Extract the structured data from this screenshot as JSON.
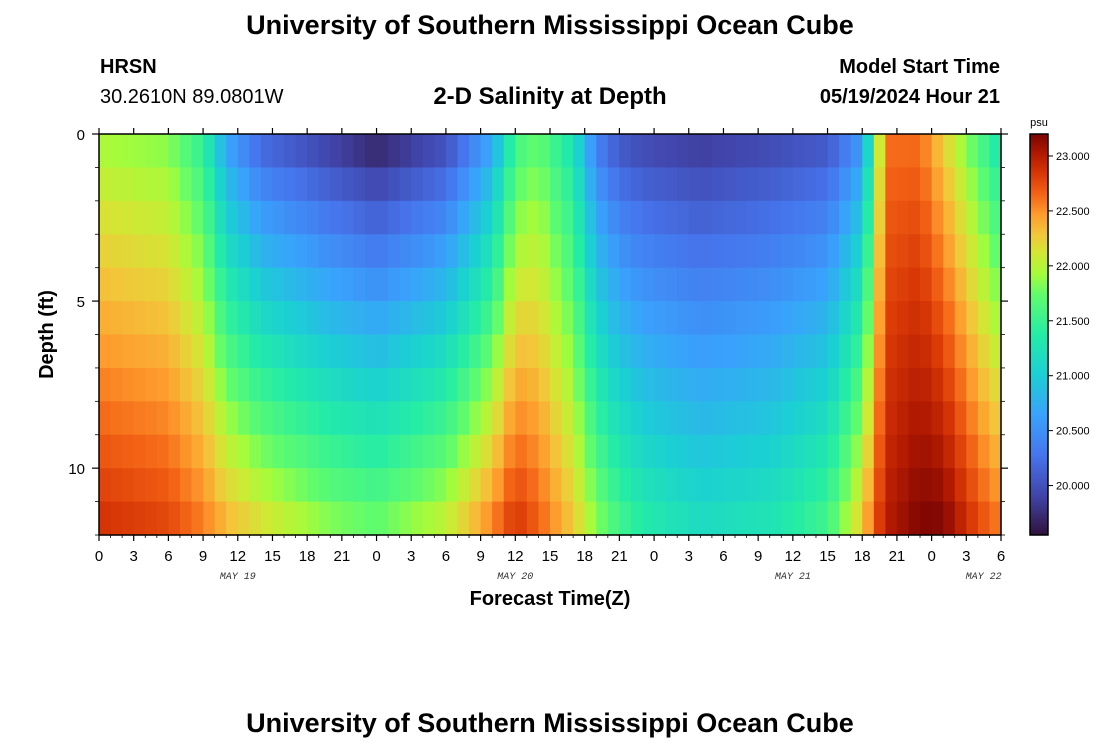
{
  "header": {
    "title": "University of Southern Mississippi Ocean Cube",
    "station": "HRSN",
    "coords": "30.2610N  89.0801W",
    "subtitle": "2-D Salinity at Depth",
    "model_start_label": "Model Start Time",
    "model_start_value": "05/19/2024 Hour 21"
  },
  "footer": {
    "title": "University of Southern Mississippi Ocean Cube"
  },
  "chart_data": {
    "type": "heatmap",
    "title": "2-D Salinity at Depth",
    "xlabel": "Forecast Time(Z)",
    "ylabel": "Depth (ft)",
    "x_range_hours": [
      0,
      78
    ],
    "x_ticks": [
      {
        "h": 0,
        "label": "0"
      },
      {
        "h": 3,
        "label": "3"
      },
      {
        "h": 6,
        "label": "6"
      },
      {
        "h": 9,
        "label": "9"
      },
      {
        "h": 12,
        "label": "12"
      },
      {
        "h": 15,
        "label": "15"
      },
      {
        "h": 18,
        "label": "18"
      },
      {
        "h": 21,
        "label": "21"
      },
      {
        "h": 24,
        "label": "0"
      },
      {
        "h": 27,
        "label": "3"
      },
      {
        "h": 30,
        "label": "6"
      },
      {
        "h": 33,
        "label": "9"
      },
      {
        "h": 36,
        "label": "12"
      },
      {
        "h": 39,
        "label": "15"
      },
      {
        "h": 42,
        "label": "18"
      },
      {
        "h": 45,
        "label": "21"
      },
      {
        "h": 48,
        "label": "0"
      },
      {
        "h": 51,
        "label": "3"
      },
      {
        "h": 54,
        "label": "6"
      },
      {
        "h": 57,
        "label": "9"
      },
      {
        "h": 60,
        "label": "12"
      },
      {
        "h": 63,
        "label": "15"
      },
      {
        "h": 66,
        "label": "18"
      },
      {
        "h": 69,
        "label": "21"
      },
      {
        "h": 72,
        "label": "0"
      },
      {
        "h": 75,
        "label": "3"
      },
      {
        "h": 78,
        "label": "6"
      }
    ],
    "date_labels": [
      {
        "h": 12,
        "label": "MAY 19"
      },
      {
        "h": 36,
        "label": "MAY 20"
      },
      {
        "h": 60,
        "label": "MAY 21"
      },
      {
        "h": 76.5,
        "label": "MAY 22"
      }
    ],
    "y_range_ft": [
      0,
      12
    ],
    "y_ticks": [
      {
        "v": 0,
        "label": "0"
      },
      {
        "v": 5,
        "label": "5"
      },
      {
        "v": 10,
        "label": "10"
      }
    ],
    "colorbar": {
      "units": "psu",
      "min": 19.55,
      "max": 23.2,
      "ticks": [
        {
          "v": 23.0,
          "label": "23.000"
        },
        {
          "v": 22.5,
          "label": "22.500"
        },
        {
          "v": 22.0,
          "label": "22.000"
        },
        {
          "v": 21.5,
          "label": "21.500"
        },
        {
          "v": 21.0,
          "label": "21.000"
        },
        {
          "v": 20.5,
          "label": "20.500"
        },
        {
          "v": 20.0,
          "label": "20.000"
        }
      ]
    },
    "n_time_cols": 78,
    "n_depth_rows": 12,
    "salinity_profile_psu": {
      "description": "surface / bottom salinity keyframes by forecast hour",
      "hours": [
        0,
        6,
        9,
        11,
        14,
        20,
        24,
        30,
        34,
        36,
        38,
        41,
        43,
        45,
        47,
        52,
        58,
        63,
        66,
        67,
        68,
        71,
        73,
        76,
        78
      ],
      "surface": [
        21.9,
        21.8,
        21.4,
        20.6,
        20.1,
        19.8,
        19.6,
        19.9,
        20.6,
        21.5,
        21.7,
        21.2,
        20.3,
        20.0,
        19.9,
        19.8,
        19.9,
        20.0,
        20.5,
        21.5,
        22.6,
        22.6,
        22.2,
        21.6,
        21.2
      ],
      "bottom": [
        22.9,
        22.8,
        22.6,
        22.4,
        22.2,
        21.9,
        21.8,
        22.1,
        22.6,
        22.9,
        22.7,
        22.3,
        21.9,
        21.6,
        21.4,
        21.2,
        21.3,
        21.6,
        22.3,
        22.7,
        23.0,
        23.2,
        23.2,
        22.8,
        22.6
      ]
    }
  }
}
